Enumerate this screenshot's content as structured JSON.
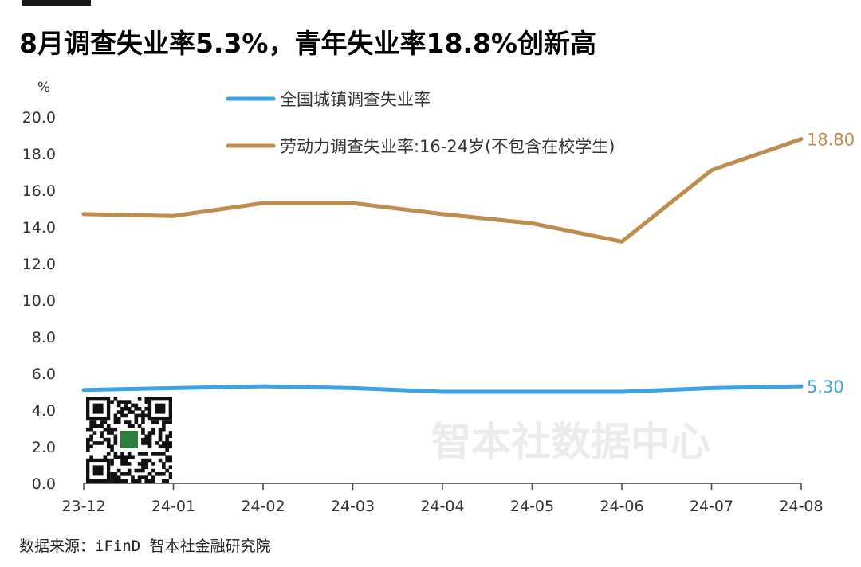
{
  "title": "8月调查失业率5.3%，青年失业率18.8%创新高",
  "source": "数据来源：iFinD 智本社金融研究院",
  "watermark": "智本社数据中心",
  "chart_data": {
    "type": "line",
    "title": "8月调查失业率5.3%，青年失业率18.8%创新高",
    "ylabel": "%",
    "ylim": [
      0,
      20
    ],
    "yticks": [
      0,
      2,
      4,
      6,
      8,
      10,
      12,
      14,
      16,
      18,
      20
    ],
    "ytick_labels": [
      "0.0",
      "2.0",
      "4.0",
      "6.0",
      "8.0",
      "10.0",
      "12.0",
      "14.0",
      "16.0",
      "18.0",
      "20.0"
    ],
    "categories": [
      "23-12",
      "24-01",
      "24-02",
      "24-03",
      "24-04",
      "24-05",
      "24-06",
      "24-07",
      "24-08"
    ],
    "grid": false,
    "legend_position": "top",
    "series": [
      {
        "name": "全国城镇调查失业率",
        "color": "#3fa2e4",
        "values": [
          5.1,
          5.2,
          5.3,
          5.2,
          5.0,
          5.0,
          5.0,
          5.2,
          5.3
        ],
        "end_label": "5.30"
      },
      {
        "name": "劳动力调查失业率:16-24岁(不包含在校学生)",
        "color": "#bd8c4e",
        "values": [
          14.7,
          14.6,
          15.3,
          15.3,
          14.7,
          14.2,
          13.2,
          17.1,
          18.8
        ],
        "end_label": "18.80"
      }
    ]
  }
}
